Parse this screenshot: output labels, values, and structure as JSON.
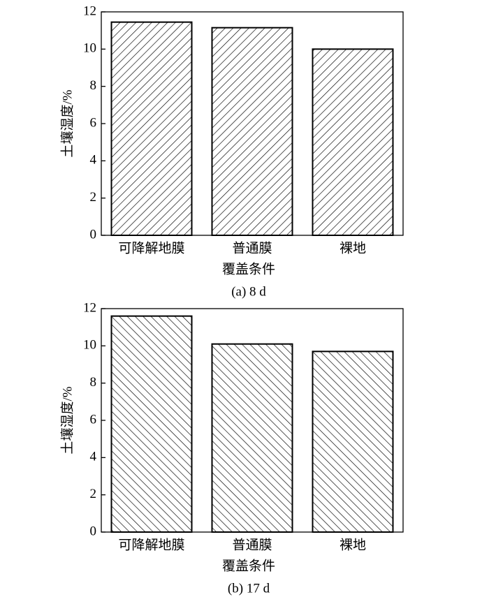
{
  "chart_data": [
    {
      "type": "bar",
      "caption": "(a) 8 d",
      "y_label": "土壤湿度/%",
      "x_label": "覆盖条件",
      "categories": [
        "可降解地膜",
        "普通膜",
        "裸地"
      ],
      "values": [
        11.45,
        11.15,
        10.0
      ],
      "ylim": [
        0,
        12
      ],
      "yticks": [
        0,
        2,
        4,
        6,
        8,
        10,
        12
      ],
      "hatch": "/"
    },
    {
      "type": "bar",
      "caption": "(b) 17 d",
      "y_label": "土壤湿度/%",
      "x_label": "覆盖条件",
      "categories": [
        "可降解地膜",
        "普通膜",
        "裸地"
      ],
      "values": [
        11.6,
        10.1,
        9.7
      ],
      "ylim": [
        0,
        12
      ],
      "yticks": [
        0,
        2,
        4,
        6,
        8,
        10,
        12
      ],
      "hatch": "\\"
    }
  ]
}
